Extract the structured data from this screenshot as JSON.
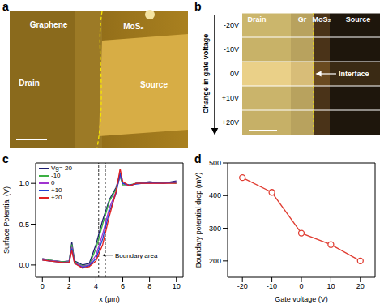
{
  "panels": [
    {
      "panel": "a",
      "type": "image",
      "labels": [
        "Graphene",
        "MoS₂",
        "Drain",
        "Source"
      ]
    },
    {
      "panel": "b",
      "type": "image",
      "axis_label": "Change in gate voltage",
      "row_labels": [
        "-20V",
        "-10V",
        "0V",
        "+10V",
        "+20V"
      ],
      "labels": [
        "Drain",
        "Gr",
        "MoS₂",
        "Source"
      ],
      "annotation": "Interface"
    }
  ],
  "chart_data": [
    {
      "panel": "c",
      "type": "line",
      "x_label": "x (μm)",
      "y_label": "Surface Potential (V)",
      "x": [
        0,
        0.5,
        1,
        1.5,
        2,
        2.2,
        2.4,
        3,
        3.5,
        4,
        4.5,
        5,
        5.5,
        5.8,
        6,
        6.5,
        7,
        8,
        9,
        10
      ],
      "xlim": [
        -0.5,
        10.5
      ],
      "xticks": [
        0,
        2,
        4,
        6,
        8,
        10
      ],
      "ylim": [
        -0.15,
        1.25
      ],
      "yticks": [
        {
          "value": 0,
          "label": "0.0"
        },
        {
          "value": 0.5,
          "label": "0.5"
        },
        {
          "value": 1,
          "label": "1.0"
        }
      ],
      "legend": "upper left",
      "annotation": "Boundary area",
      "boundary_lines": [
        4.2,
        4.7
      ],
      "series": [
        {
          "name": "Vg=-20",
          "color": "#1c1c6e",
          "values": [
            0.08,
            0.06,
            0.05,
            0.04,
            0.05,
            0.28,
            0.05,
            0.0,
            0.02,
            0.25,
            0.55,
            0.8,
            0.95,
            1.12,
            1.0,
            0.97,
            1.0,
            1.02,
            1.0,
            1.03
          ]
        },
        {
          "name": "-10",
          "color": "#3cb043",
          "values": [
            0.07,
            0.06,
            0.05,
            0.04,
            0.04,
            0.25,
            0.04,
            -0.01,
            0.0,
            0.2,
            0.5,
            0.78,
            0.93,
            1.08,
            0.98,
            0.98,
            1.0,
            1.0,
            1.01,
            1.0
          ]
        },
        {
          "name": "0",
          "color": "#a033d0",
          "values": [
            0.07,
            0.05,
            0.05,
            0.03,
            0.04,
            0.22,
            0.03,
            -0.02,
            0.0,
            0.12,
            0.38,
            0.7,
            0.9,
            1.1,
            1.0,
            0.97,
            1.0,
            1.0,
            1.0,
            1.02
          ]
        },
        {
          "name": "+10",
          "color": "#1f3fd0",
          "values": [
            0.06,
            0.05,
            0.04,
            0.03,
            0.03,
            0.2,
            0.02,
            -0.03,
            -0.01,
            0.08,
            0.32,
            0.65,
            0.88,
            1.12,
            1.0,
            0.98,
            0.99,
            1.01,
            1.0,
            1.01
          ]
        },
        {
          "name": "+20",
          "color": "#e02020",
          "values": [
            0.06,
            0.05,
            0.04,
            0.03,
            0.03,
            0.18,
            0.02,
            -0.04,
            -0.02,
            0.05,
            0.25,
            0.6,
            0.9,
            1.18,
            1.02,
            0.97,
            1.0,
            1.0,
            1.0,
            1.0
          ]
        }
      ]
    },
    {
      "panel": "d",
      "type": "line",
      "x_label": "Gate voltage (V)",
      "y_label": "Boundary potential drop (mV)",
      "x": [
        -20,
        -10,
        0,
        10,
        20
      ],
      "values": [
        455,
        410,
        285,
        250,
        200
      ],
      "color": "#e03c31",
      "marker": "circle",
      "xlim": [
        -25,
        25
      ],
      "xticks": [
        -20,
        -10,
        0,
        10,
        20
      ],
      "ylim": [
        150,
        500
      ],
      "yticks": [
        200,
        300,
        400,
        500
      ]
    }
  ]
}
